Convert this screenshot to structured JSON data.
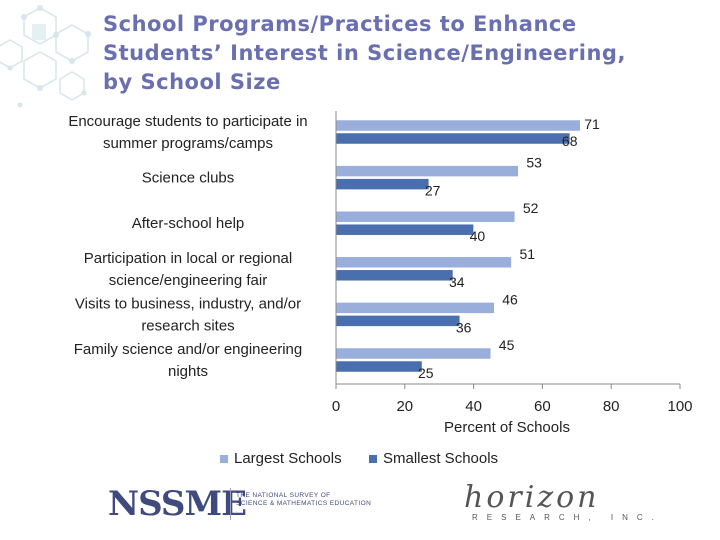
{
  "slide": {
    "title_lines": [
      "School Programs/Practices to Enhance",
      "Students’ Interest in Science/Engineering,",
      "by School Size"
    ]
  },
  "chart_data": {
    "type": "bar",
    "orientation": "horizontal",
    "categories": [
      [
        "Encourage students to participate in",
        "summer programs/camps"
      ],
      [
        "Science clubs"
      ],
      [
        "After-school help"
      ],
      [
        "Participation in local or regional",
        "science/engineering fair"
      ],
      [
        "Visits to business, industry, and/or",
        "research sites"
      ],
      [
        "Family science and/or engineering",
        "nights"
      ]
    ],
    "series": [
      {
        "name": "Largest Schools",
        "values": [
          71,
          53,
          52,
          51,
          46,
          45
        ],
        "color": "#9aaedc"
      },
      {
        "name": "Smallest Schools",
        "values": [
          68,
          27,
          40,
          34,
          36,
          25
        ],
        "color": "#4a6fae"
      }
    ],
    "xlabel": "Percent of Schools",
    "xlim": [
      0,
      100
    ],
    "xticks": [
      0,
      20,
      40,
      60,
      80,
      100
    ],
    "legend_position": "bottom",
    "grid": false
  },
  "footer": {
    "logo_left_text": "NSSME",
    "logo_left_sub": [
      "THE NATIONAL SURVEY OF",
      "SCIENCE & MATHEMATICS EDUCATION"
    ],
    "logo_right_text": "horizon",
    "logo_right_sub": "RESEARCH, INC."
  }
}
